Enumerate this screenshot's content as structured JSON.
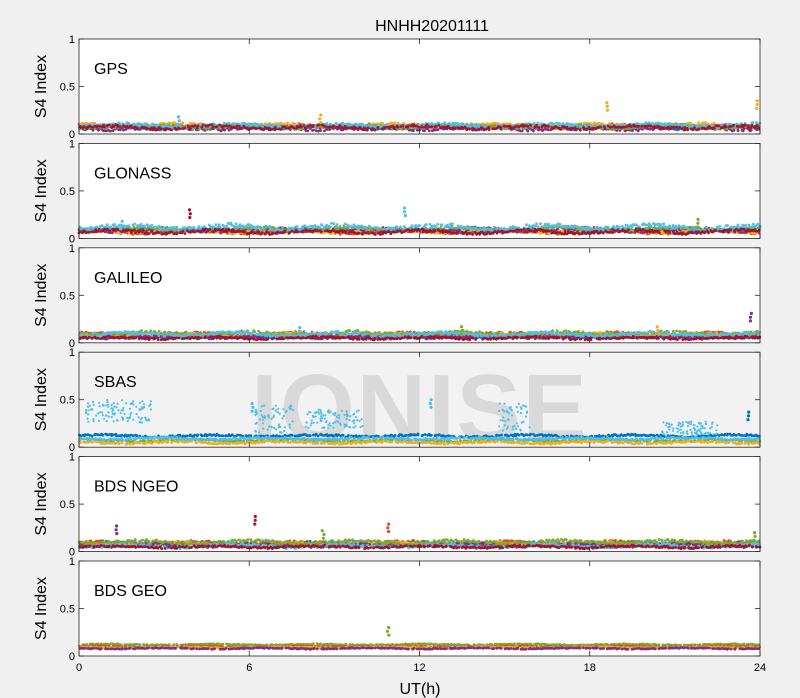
{
  "chart_data": {
    "type": "scatter",
    "title": "HNHH20201111",
    "xlabel": "UT(h)",
    "ylabel": "S4 Index",
    "xlim": [
      0,
      24
    ],
    "ylim": [
      0,
      1
    ],
    "x_ticks": [
      "0",
      "6",
      "12",
      "18",
      "24"
    ],
    "y_ticks": [
      "0",
      "0.5",
      "1"
    ],
    "watermark": "IONISE",
    "panels": [
      {
        "name": "GPS",
        "bands": [
          {
            "color": "#0072BD",
            "level": 0.07,
            "spread": 0.03
          },
          {
            "color": "#D95319",
            "level": 0.08,
            "spread": 0.03
          },
          {
            "color": "#EDB120",
            "level": 0.09,
            "spread": 0.03
          },
          {
            "color": "#7E2F8E",
            "level": 0.06,
            "spread": 0.03
          },
          {
            "color": "#77AC30",
            "level": 0.08,
            "spread": 0.03
          },
          {
            "color": "#4DBEEE",
            "level": 0.09,
            "spread": 0.03
          },
          {
            "color": "#A2142F",
            "level": 0.07,
            "spread": 0.03
          }
        ],
        "spikes": [
          {
            "x": 23.9,
            "y": 0.35,
            "color": "#EDB120"
          },
          {
            "x": 18.6,
            "y": 0.33,
            "color": "#EDB120"
          },
          {
            "x": 3.5,
            "y": 0.18,
            "color": "#4DBEEE"
          },
          {
            "x": 8.5,
            "y": 0.2,
            "color": "#EDB120"
          }
        ]
      },
      {
        "name": "GLONASS",
        "bands": [
          {
            "color": "#0072BD",
            "level": 0.08,
            "spread": 0.03
          },
          {
            "color": "#D95319",
            "level": 0.07,
            "spread": 0.03
          },
          {
            "color": "#EDB120",
            "level": 0.08,
            "spread": 0.03
          },
          {
            "color": "#7E2F8E",
            "level": 0.09,
            "spread": 0.03
          },
          {
            "color": "#77AC30",
            "level": 0.1,
            "spread": 0.03
          },
          {
            "color": "#4DBEEE",
            "level": 0.12,
            "spread": 0.04
          },
          {
            "color": "#A2142F",
            "level": 0.07,
            "spread": 0.03
          }
        ],
        "spikes": [
          {
            "x": 3.9,
            "y": 0.3,
            "color": "#A2142F"
          },
          {
            "x": 11.5,
            "y": 0.32,
            "color": "#4DBEEE"
          },
          {
            "x": 1.5,
            "y": 0.18,
            "color": "#4DBEEE"
          },
          {
            "x": 21.8,
            "y": 0.2,
            "color": "#77AC30"
          }
        ]
      },
      {
        "name": "GALILEO",
        "bands": [
          {
            "color": "#0072BD",
            "level": 0.07,
            "spread": 0.02
          },
          {
            "color": "#D95319",
            "level": 0.09,
            "spread": 0.03
          },
          {
            "color": "#EDB120",
            "level": 0.08,
            "spread": 0.03
          },
          {
            "color": "#7E2F8E",
            "level": 0.06,
            "spread": 0.02
          },
          {
            "color": "#77AC30",
            "level": 0.1,
            "spread": 0.03
          },
          {
            "color": "#4DBEEE",
            "level": 0.09,
            "spread": 0.03
          },
          {
            "color": "#A2142F",
            "level": 0.05,
            "spread": 0.02
          }
        ],
        "spikes": [
          {
            "x": 23.7,
            "y": 0.31,
            "color": "#7E2F8E"
          },
          {
            "x": 7.8,
            "y": 0.16,
            "color": "#4DBEEE"
          },
          {
            "x": 13.5,
            "y": 0.17,
            "color": "#77AC30"
          },
          {
            "x": 20.4,
            "y": 0.17,
            "color": "#EDB120"
          }
        ]
      },
      {
        "name": "SBAS",
        "bands": [
          {
            "color": "#0072BD",
            "level": 0.12,
            "spread": 0.02
          },
          {
            "color": "#77AC30",
            "level": 0.07,
            "spread": 0.02
          },
          {
            "color": "#EDB120",
            "level": 0.05,
            "spread": 0.02
          },
          {
            "color": "#4DBEEE",
            "level": 0.09,
            "spread": 0.02
          }
        ],
        "clusters": [
          {
            "color": "#4DBEEE",
            "x0": 0.2,
            "x1": 2.6,
            "level": 0.38,
            "spread": 0.12
          },
          {
            "color": "#4DBEEE",
            "x0": 6.2,
            "x1": 7.6,
            "level": 0.3,
            "spread": 0.15
          },
          {
            "color": "#4DBEEE",
            "x0": 8.0,
            "x1": 10.0,
            "level": 0.3,
            "spread": 0.1
          },
          {
            "color": "#4DBEEE",
            "x0": 14.8,
            "x1": 15.9,
            "level": 0.32,
            "spread": 0.15
          },
          {
            "color": "#4DBEEE",
            "x0": 20.5,
            "x1": 22.5,
            "level": 0.2,
            "spread": 0.07
          }
        ],
        "spikes": [
          {
            "x": 23.6,
            "y": 0.37,
            "color": "#0072BD"
          },
          {
            "x": 12.4,
            "y": 0.5,
            "color": "#4DBEEE"
          },
          {
            "x": 6.1,
            "y": 0.46,
            "color": "#4DBEEE"
          }
        ]
      },
      {
        "name": "BDS NGEO",
        "bands": [
          {
            "color": "#0072BD",
            "level": 0.08,
            "spread": 0.03
          },
          {
            "color": "#D95319",
            "level": 0.09,
            "spread": 0.03
          },
          {
            "color": "#EDB120",
            "level": 0.08,
            "spread": 0.03
          },
          {
            "color": "#7E2F8E",
            "level": 0.07,
            "spread": 0.03
          },
          {
            "color": "#77AC30",
            "level": 0.1,
            "spread": 0.03
          },
          {
            "color": "#4DBEEE",
            "level": 0.06,
            "spread": 0.03
          },
          {
            "color": "#A2142F",
            "level": 0.05,
            "spread": 0.02
          }
        ],
        "spikes": [
          {
            "x": 1.3,
            "y": 0.27,
            "color": "#7E2F8E"
          },
          {
            "x": 6.2,
            "y": 0.37,
            "color": "#A2142F"
          },
          {
            "x": 10.9,
            "y": 0.29,
            "color": "#D95319"
          },
          {
            "x": 8.6,
            "y": 0.22,
            "color": "#77AC30"
          },
          {
            "x": 23.8,
            "y": 0.2,
            "color": "#77AC30"
          }
        ]
      },
      {
        "name": "BDS GEO",
        "bands": [
          {
            "color": "#77AC30",
            "level": 0.12,
            "spread": 0.01
          },
          {
            "color": "#D95319",
            "level": 0.1,
            "spread": 0.01
          },
          {
            "color": "#EDB120",
            "level": 0.09,
            "spread": 0.01
          },
          {
            "color": "#7E2F8E",
            "level": 0.08,
            "spread": 0.01
          }
        ],
        "spikes": [
          {
            "x": 10.9,
            "y": 0.3,
            "color": "#77AC30"
          }
        ]
      }
    ]
  }
}
